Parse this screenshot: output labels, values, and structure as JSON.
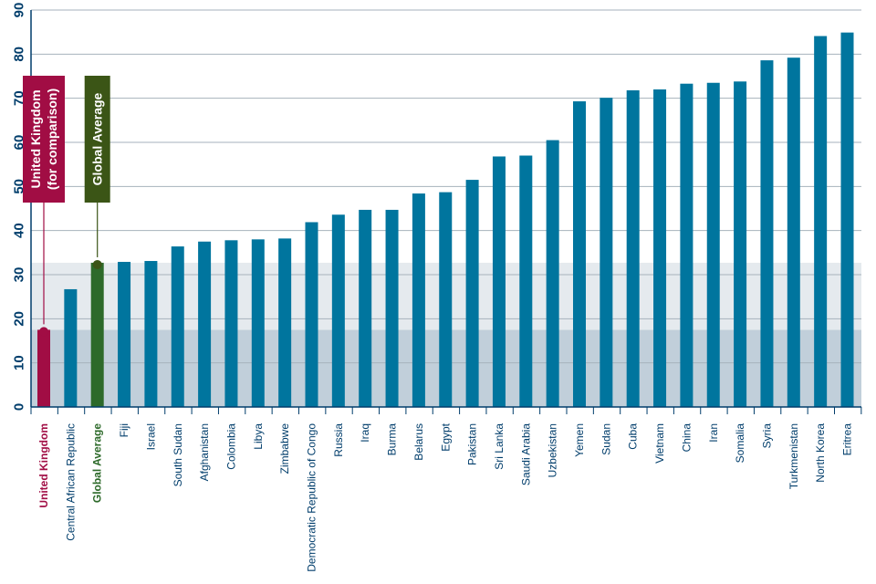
{
  "chart_data": {
    "type": "bar",
    "categories": [
      "United Kingdom",
      "Central African Republic",
      "Global Average",
      "Fiji",
      "Israel",
      "South Sudan",
      "Afghanistan",
      "Colombia",
      "Libya",
      "Zimbabwe",
      "Democratic Republic of Congo",
      "Russia",
      "Iraq",
      "Burma",
      "Belarus",
      "Egypt",
      "Pakistan",
      "Sri Lanka",
      "Saudi Arabia",
      "Uzbekistan",
      "Yemen",
      "Sudan",
      "Cuba",
      "Vietnam",
      "China",
      "Iran",
      "Somalia",
      "Syria",
      "Turkmenistan",
      "North Korea",
      "Eritrea"
    ],
    "values": [
      17.5,
      26.7,
      32.7,
      32.9,
      33.1,
      36.4,
      37.5,
      37.8,
      38.0,
      38.2,
      41.9,
      43.6,
      44.7,
      44.7,
      48.4,
      48.7,
      51.5,
      56.8,
      57.0,
      60.5,
      69.3,
      70.1,
      71.8,
      72.0,
      73.3,
      73.5,
      73.8,
      78.6,
      79.2,
      84.1,
      84.9
    ],
    "ylim": [
      0,
      90
    ],
    "yticks": [
      0,
      10,
      20,
      30,
      40,
      50,
      60,
      70,
      80,
      90
    ],
    "bands": [
      {
        "from": 0,
        "to": 17.5,
        "color": "#c1cfda"
      },
      {
        "from": 17.5,
        "to": 32.7,
        "color": "#e5eaee"
      }
    ],
    "grid": true,
    "bar_color": "#00759e",
    "highlight": {
      "United Kingdom": "#a10d44",
      "Global Average": "#2d6a2a"
    },
    "label_colors": {
      "default": "#003d6b",
      "United Kingdom": "#a10d44",
      "Global Average": "#2d6a2a"
    },
    "annotations": [
      {
        "category": "United Kingdom",
        "lines": [
          "United Kingdom",
          "(for comparison)"
        ],
        "color": "#a10d44"
      },
      {
        "category": "Global Average",
        "lines": [
          "Global Average"
        ],
        "color": "#3b5516"
      }
    ]
  }
}
